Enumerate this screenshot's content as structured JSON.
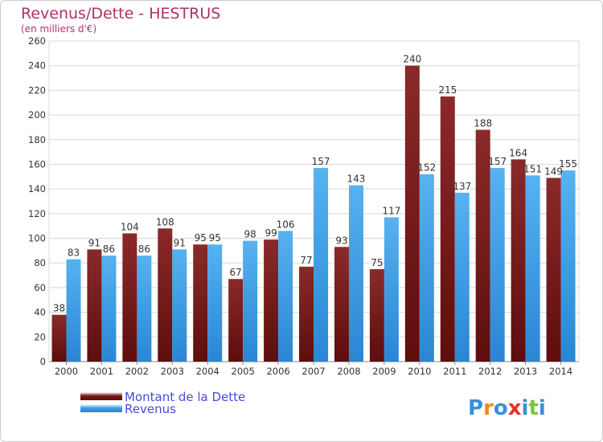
{
  "chart_data": {
    "type": "bar",
    "title": "Revenus/Dette - HESTRUS",
    "subtitle": "(en milliers d'€)",
    "categories": [
      "2000",
      "2001",
      "2002",
      "2003",
      "2004",
      "2005",
      "2006",
      "2007",
      "2008",
      "2009",
      "2010",
      "2011",
      "2012",
      "2013",
      "2014"
    ],
    "series": [
      {
        "name": "Montant de la Dette",
        "color": "#7a1a1a",
        "values": [
          38,
          91,
          104,
          108,
          95,
          67,
          99,
          77,
          93,
          75,
          240,
          215,
          188,
          164,
          149
        ]
      },
      {
        "name": "Revenus",
        "color": "#3a9ee8",
        "values": [
          83,
          86,
          86,
          91,
          95,
          98,
          106,
          157,
          143,
          117,
          152,
          137,
          157,
          151,
          155
        ]
      }
    ],
    "ylim": [
      0,
      260
    ],
    "yticks": [
      0,
      20,
      40,
      60,
      80,
      100,
      120,
      140,
      160,
      180,
      200,
      220,
      240,
      260
    ],
    "grid": true,
    "legend": "bottom-left"
  },
  "logo": {
    "letters": [
      "P",
      "r",
      "o",
      "x",
      "i",
      "t",
      "i"
    ],
    "colors": [
      "#3a8fd8",
      "#f08a1c",
      "#3a8fd8",
      "#e8302a",
      "#3a8fd8",
      "#7cc242",
      "#3a8fd8"
    ]
  }
}
